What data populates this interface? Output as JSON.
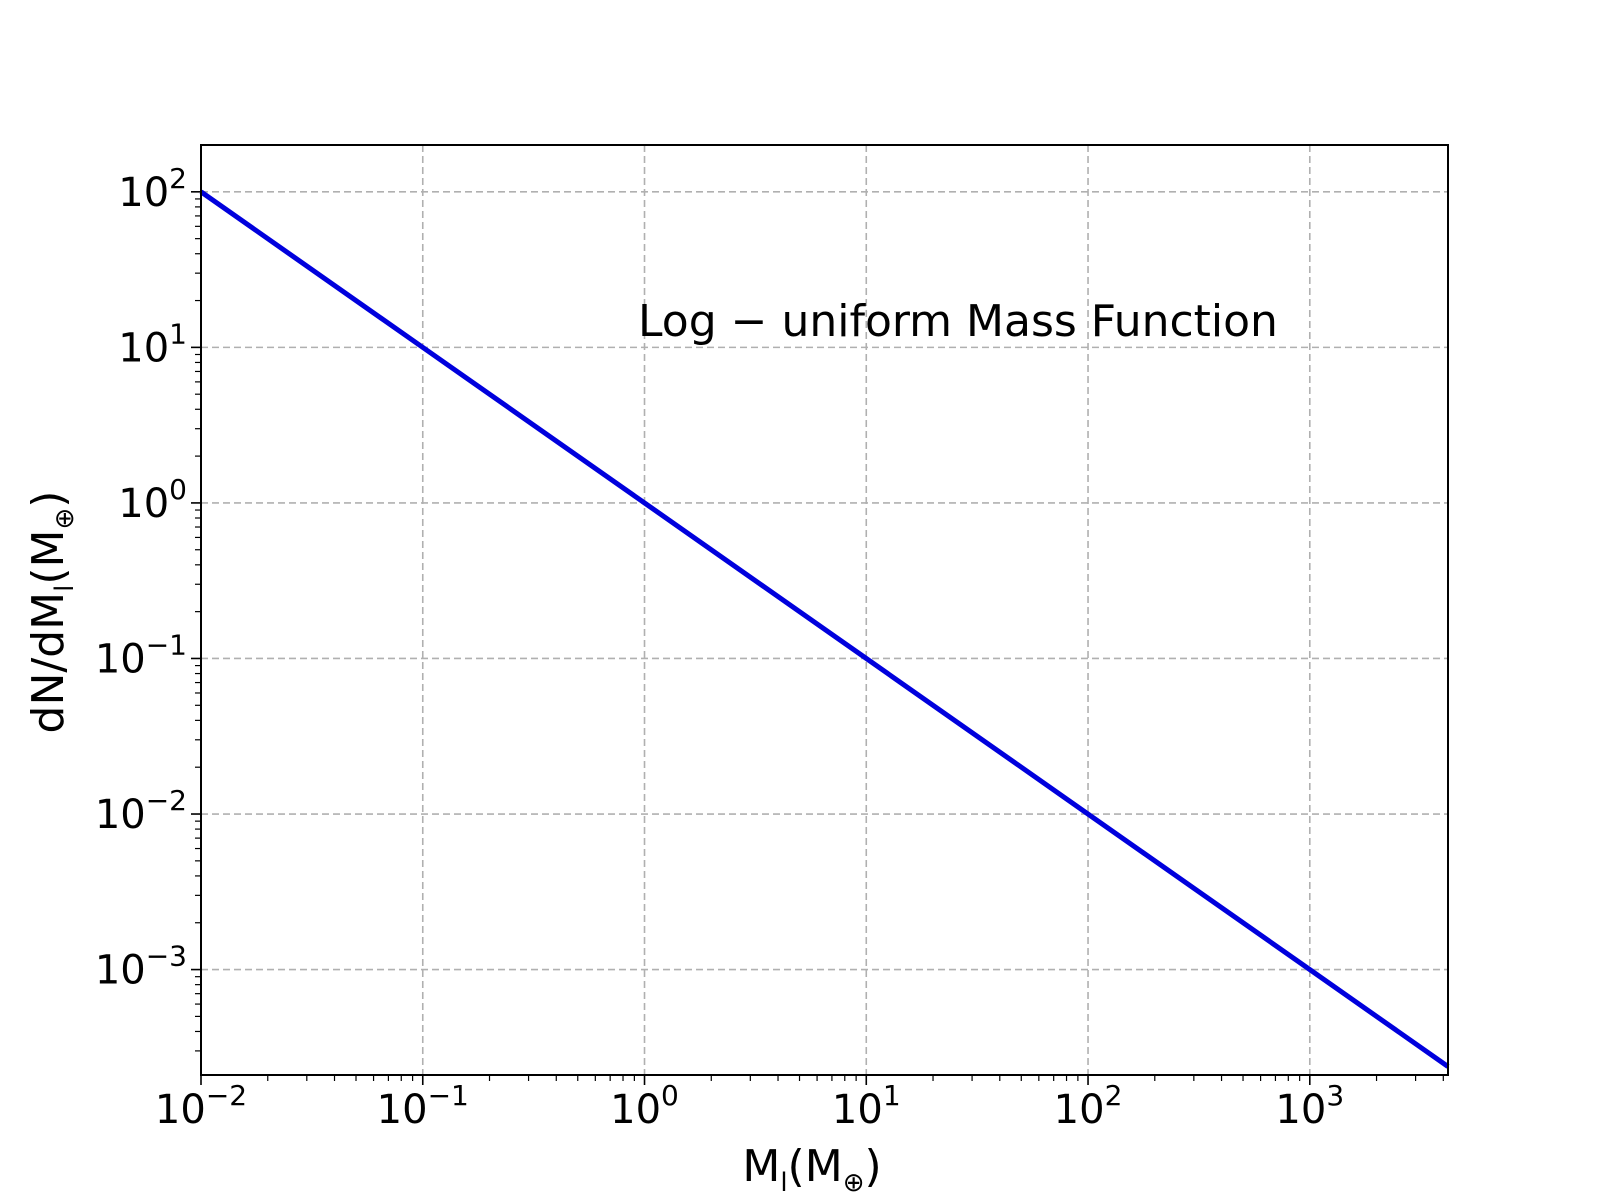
{
  "chart_data": {
    "type": "line",
    "annotation": "Log − uniform Mass Function",
    "xlabel": {
      "base": "M",
      "sub": "l",
      "unit_open": "(M",
      "unit_sub": "⊕",
      "unit_close": ")"
    },
    "ylabel": {
      "text": "dN/dM",
      "sub": "l",
      "unit_open": "(M",
      "unit_sub": "⊕",
      "unit_close": ")"
    },
    "xscale": "log",
    "yscale": "log",
    "xlim": [
      0.01,
      4200
    ],
    "ylim": [
      0.00021,
      200
    ],
    "grid": true,
    "xticks": [
      {
        "base": "10",
        "exp": "−2",
        "value": 0.01
      },
      {
        "base": "10",
        "exp": "−1",
        "value": 0.1
      },
      {
        "base": "10",
        "exp": "0",
        "value": 1
      },
      {
        "base": "10",
        "exp": "1",
        "value": 10
      },
      {
        "base": "10",
        "exp": "2",
        "value": 100
      },
      {
        "base": "10",
        "exp": "3",
        "value": 1000
      }
    ],
    "yticks": [
      {
        "base": "10",
        "exp": "2",
        "value": 100
      },
      {
        "base": "10",
        "exp": "1",
        "value": 10
      },
      {
        "base": "10",
        "exp": "0",
        "value": 1
      },
      {
        "base": "10",
        "exp": "−1",
        "value": 0.1
      },
      {
        "base": "10",
        "exp": "−2",
        "value": 0.01
      },
      {
        "base": "10",
        "exp": "−3",
        "value": 0.001
      }
    ],
    "series": [
      {
        "color": "#0000dd",
        "x": [
          0.01,
          0.1,
          1,
          10,
          100,
          1000,
          4200
        ],
        "y": [
          100,
          10,
          1,
          0.1,
          0.01,
          0.001,
          0.000238
        ]
      }
    ]
  }
}
